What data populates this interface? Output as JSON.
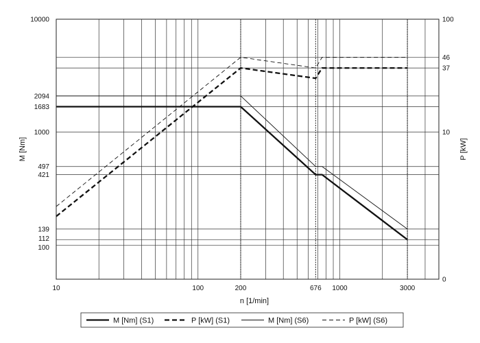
{
  "chart_data": {
    "type": "line",
    "xlabel": "n [1/min]",
    "ylabel_left": "M [Nm]",
    "ylabel_right": "P [kW]",
    "x_scale": "log",
    "y_scale": "log",
    "xlim": [
      10,
      5000
    ],
    "ylim_left": [
      50,
      10000
    ],
    "ylim_right": [
      0,
      100
    ],
    "grid": true,
    "x_ticks": [
      10,
      100,
      200,
      676,
      1000,
      3000
    ],
    "y_ticks_left": [
      100,
      112,
      139,
      421,
      497,
      1000,
      1683,
      2094,
      10000
    ],
    "y_ticks_right": [
      0,
      10,
      37,
      46,
      100
    ],
    "legend_position": "bottom",
    "series": [
      {
        "name": "M [Nm] (S1)",
        "axis": "left",
        "style": "solid-thick",
        "points": [
          [
            10,
            1683
          ],
          [
            200,
            1683
          ],
          [
            676,
            421
          ],
          [
            750,
            421
          ],
          [
            3000,
            112
          ]
        ]
      },
      {
        "name": "P [kW] (S1)",
        "axis": "right",
        "style": "dashed-thick",
        "points": [
          [
            10,
            1.8
          ],
          [
            200,
            37
          ],
          [
            676,
            30
          ],
          [
            750,
            37
          ],
          [
            3000,
            37
          ]
        ]
      },
      {
        "name": "M [Nm] (S6)",
        "axis": "left",
        "style": "solid-thin",
        "points": [
          [
            10,
            2094
          ],
          [
            200,
            2094
          ],
          [
            676,
            497
          ],
          [
            750,
            497
          ],
          [
            3000,
            139
          ]
        ]
      },
      {
        "name": "P [kW] (S6)",
        "axis": "right",
        "style": "dashed-thin",
        "points": [
          [
            10,
            2.2
          ],
          [
            200,
            46
          ],
          [
            676,
            37
          ],
          [
            750,
            46
          ],
          [
            3000,
            46
          ]
        ]
      }
    ]
  }
}
